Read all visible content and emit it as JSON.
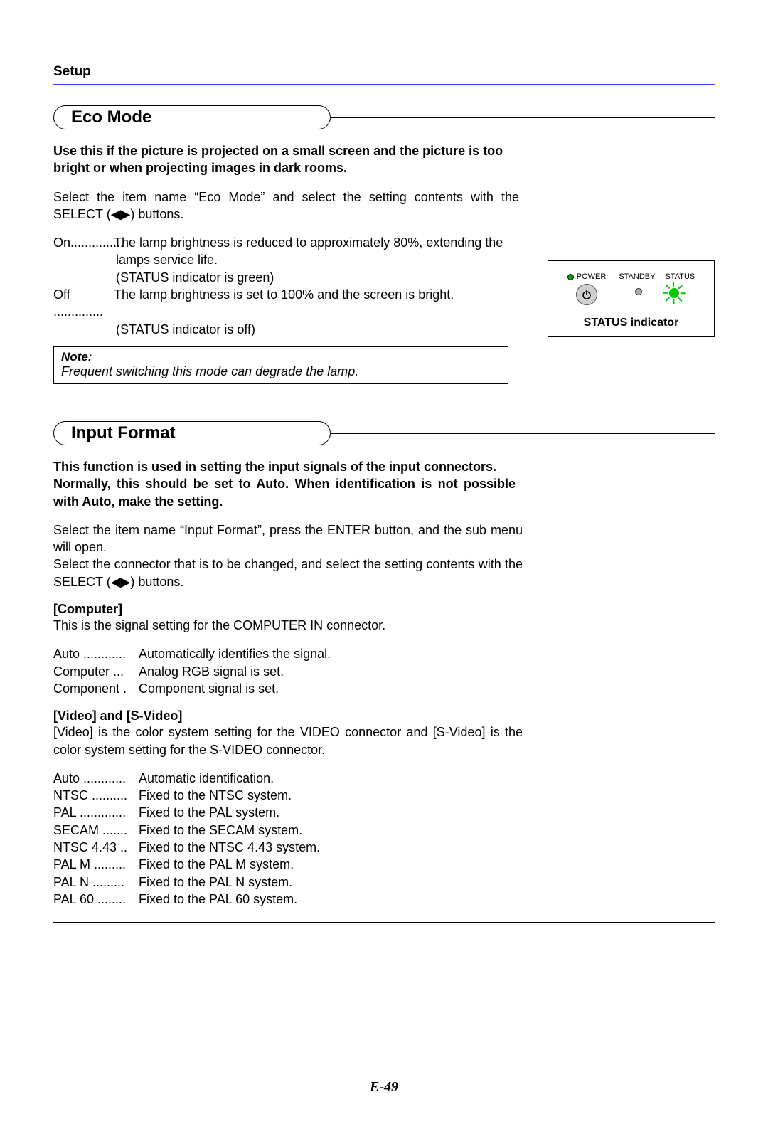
{
  "page": {
    "header": "Setup",
    "number": "E-49",
    "rule_color": "#2a47ff"
  },
  "eco": {
    "heading": "Eco Mode",
    "intro_bold": "Use this if the picture is projected on a small screen and the picture is too bright or when projecting images in dark rooms.",
    "select_line": "Select the item name “Eco Mode” and select the setting contents with the SELECT (◀▶) buttons.",
    "on_term": "On",
    "on_dots": "...............",
    "on_def": "The lamp brightness is reduced to approximately 80%, extending the",
    "on_cont1": "lamps service life.",
    "on_cont2": "(STATUS indicator is green)",
    "off_term": "Off",
    "off_dots": "..............",
    "off_def": "The lamp brightness is set to 100% and the screen is bright.",
    "off_cont1": "(STATUS indicator is off)",
    "note_label": "Note:",
    "note_body": "Frequent switching this mode can degrade the lamp."
  },
  "indicator": {
    "power_label": "POWER",
    "standby_label": "STANDBY",
    "status_label": "STATUS",
    "caption": "STATUS indicator"
  },
  "input": {
    "heading": "Input Format",
    "intro_bold": "This function is used in setting the input signals of the input connectors.\nNormally, this should be set to Auto. When identification is not possible with Auto, make the setting.",
    "p1": "Select the item name “Input Format”, press the ENTER button, and the sub menu will open.",
    "p2": "Select the connector that is to be changed, and select the setting contents with the SELECT (◀▶) buttons.",
    "computer_head": "[Computer]",
    "computer_p": "This is the signal setting for the COMPUTER IN connector.",
    "computer_opts": [
      {
        "t": "Auto ............",
        "d": "Automatically identifies the signal."
      },
      {
        "t": "Computer ...",
        "d": "Analog RGB signal is set."
      },
      {
        "t": "Component .",
        "d": "Component signal is set."
      }
    ],
    "video_head": "[Video] and [S-Video]",
    "video_p": "[Video] is the color system setting for the VIDEO connector and [S-Video] is the color system setting for the S-VIDEO connector.",
    "video_opts": [
      {
        "t": "Auto ............",
        "d": "Automatic identification."
      },
      {
        "t": "NTSC ..........",
        "d": "Fixed to the NTSC system."
      },
      {
        "t": "PAL .............",
        "d": "Fixed to the PAL system."
      },
      {
        "t": "SECAM .......",
        "d": "Fixed to the SECAM system."
      },
      {
        "t": "NTSC 4.43 ..",
        "d": "Fixed to the NTSC 4.43 system."
      },
      {
        "t": "PAL M .........",
        "d": "Fixed to the PAL M system."
      },
      {
        "t": "PAL N .........",
        "d": "Fixed to the PAL N system."
      },
      {
        "t": "PAL 60 ........",
        "d": "Fixed to the PAL 60 system."
      }
    ]
  }
}
